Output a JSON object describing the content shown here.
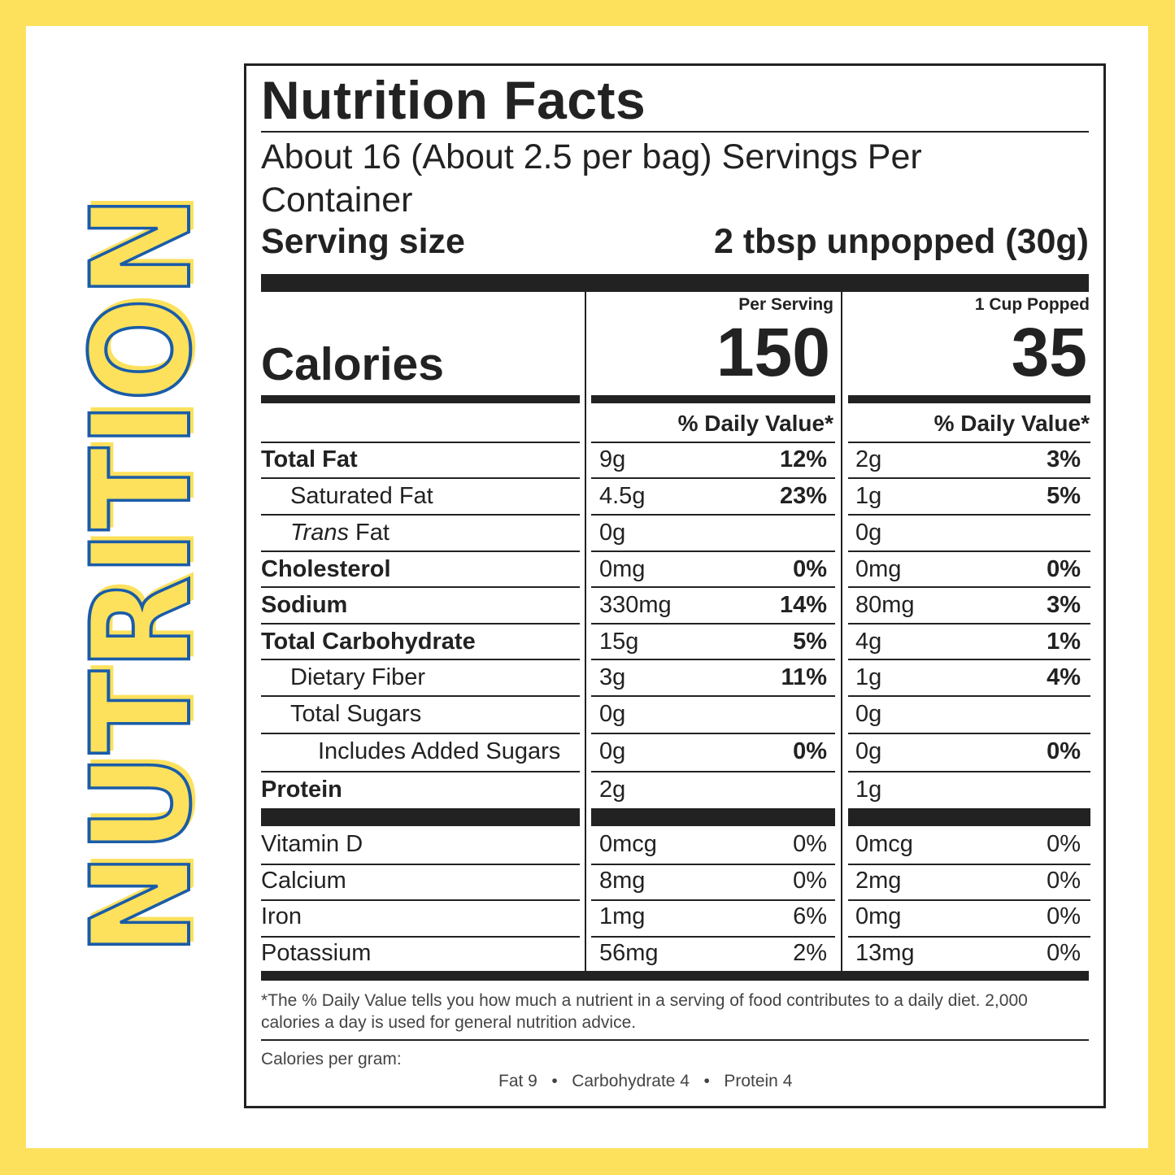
{
  "side_title": "NUTRITION",
  "colors": {
    "background": "#fde15c",
    "title_blue": "#1a5ca8",
    "title_yellow": "#fde15c",
    "ink": "#222222"
  },
  "label": {
    "title": "Nutrition Facts",
    "servings_per_container": "About 16 (About 2.5 per bag) Servings Per Container",
    "serving_size_label": "Serving size",
    "serving_size_value": "2 tbsp unpopped (30g)",
    "calories_label": "Calories",
    "columns": [
      {
        "header": "Per Serving",
        "calories": "150",
        "dv_header": "% Daily Value*"
      },
      {
        "header": "1 Cup Popped",
        "calories": "35",
        "dv_header": "% Daily Value*"
      }
    ],
    "nutrients": [
      {
        "name": "Total Fat",
        "a1": "9g",
        "p1": "12%",
        "a2": "2g",
        "p2": "3%"
      },
      {
        "name": "Saturated Fat",
        "a1": "4.5g",
        "p1": "23%",
        "a2": "1g",
        "p2": "5%"
      },
      {
        "name_italic": "Trans",
        "name": " Fat",
        "a1": "0g",
        "p1": "",
        "a2": "0g",
        "p2": ""
      },
      {
        "name": "Cholesterol",
        "a1": "0mg",
        "p1": "0%",
        "a2": "0mg",
        "p2": "0%"
      },
      {
        "name": "Sodium",
        "a1": "330mg",
        "p1": "14%",
        "a2": "80mg",
        "p2": "3%"
      },
      {
        "name": "Total Carbohydrate",
        "a1": "15g",
        "p1": "5%",
        "a2": "4g",
        "p2": "1%"
      },
      {
        "name": "Dietary Fiber",
        "a1": "3g",
        "p1": "11%",
        "a2": "1g",
        "p2": "4%"
      },
      {
        "name": "Total Sugars",
        "a1": "0g",
        "p1": "",
        "a2": "0g",
        "p2": ""
      },
      {
        "name": "Includes Added Sugars",
        "a1": "0g",
        "p1": "0%",
        "a2": "0g",
        "p2": "0%"
      },
      {
        "name": "Protein",
        "a1": "2g",
        "p1": "",
        "a2": "1g",
        "p2": ""
      }
    ],
    "vitamins": [
      {
        "name": "Vitamin D",
        "a1": "0mcg",
        "p1": "0%",
        "a2": "0mcg",
        "p2": "0%"
      },
      {
        "name": "Calcium",
        "a1": "8mg",
        "p1": "0%",
        "a2": "2mg",
        "p2": "0%"
      },
      {
        "name": "Iron",
        "a1": "1mg",
        "p1": "6%",
        "a2": "0mg",
        "p2": "0%"
      },
      {
        "name": "Potassium",
        "a1": "56mg",
        "p1": "2%",
        "a2": "13mg",
        "p2": "0%"
      }
    ],
    "footnote": "*The % Daily Value tells you how much a nutrient in a serving of food contributes to a daily diet. 2,000 calories a day is used for general nutrition advice.",
    "calories_per_gram_label": "Calories per gram:",
    "calories_per_gram_values": "Fat 9   •   Carbohydrate 4   •   Protein 4"
  }
}
